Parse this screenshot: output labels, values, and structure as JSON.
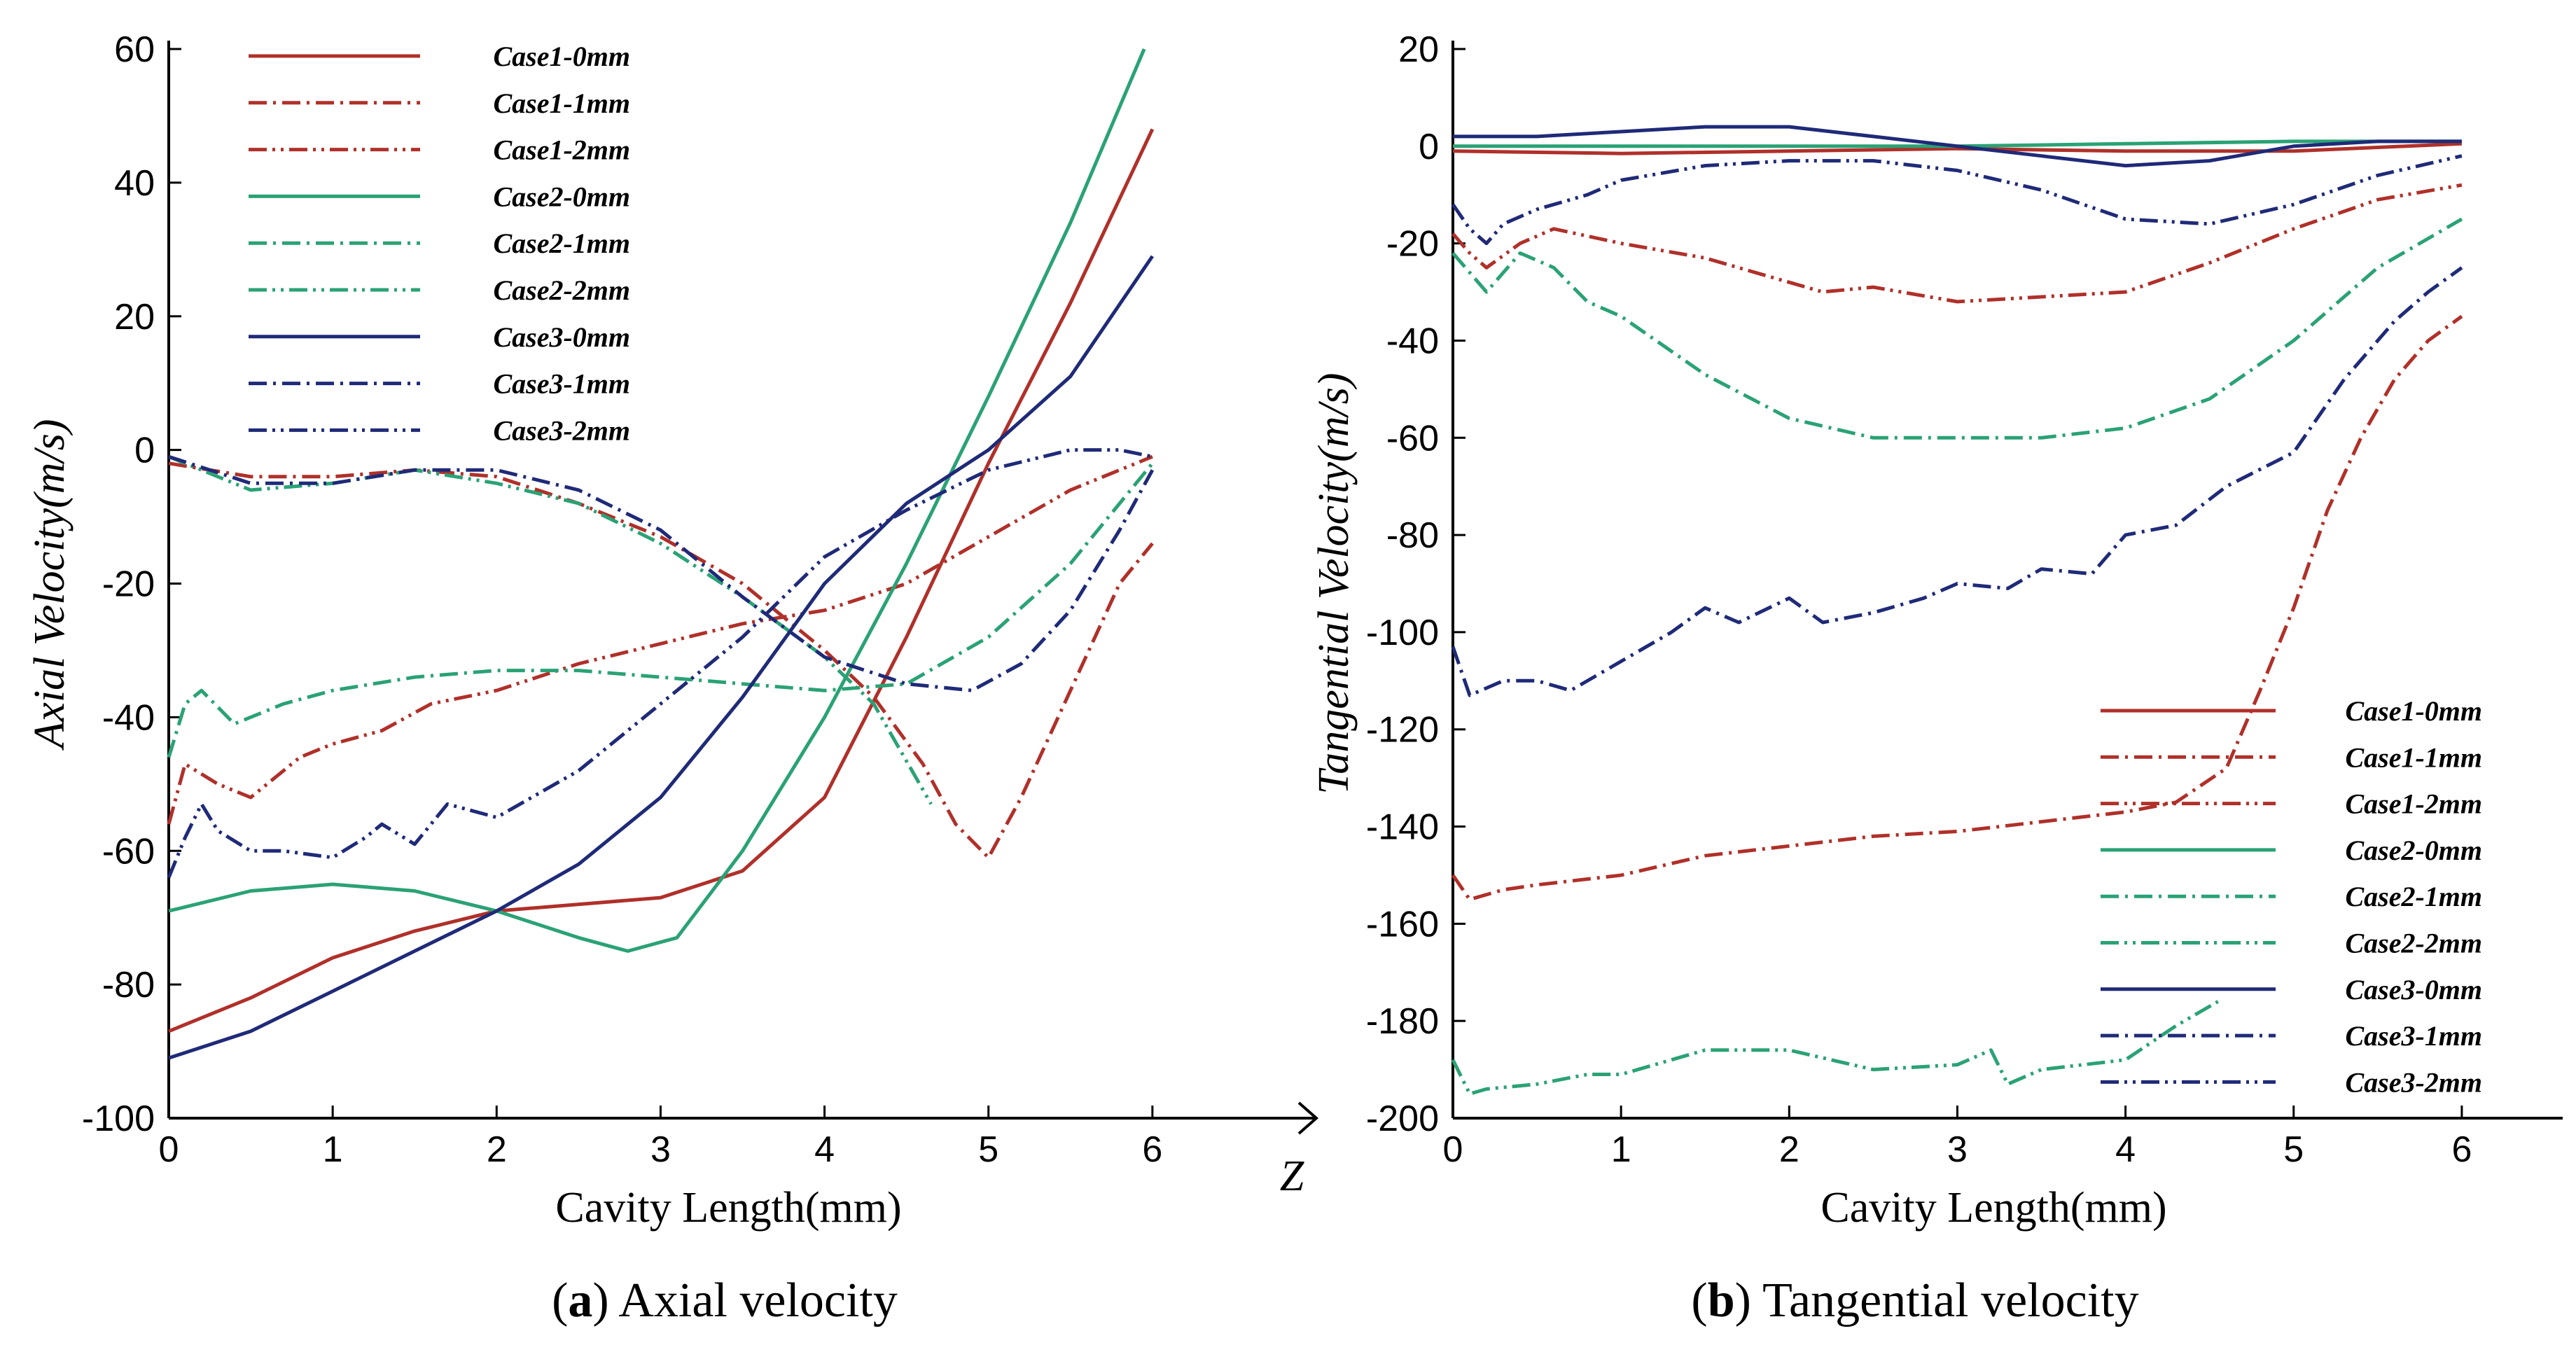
{
  "figure": {
    "caption_a": {
      "open": "(",
      "letter": "a",
      "rest": ") Axial velocity"
    },
    "caption_b": {
      "open": "(",
      "letter": "b",
      "rest": ") Tangential velocity"
    },
    "z_axis_label": "Z"
  },
  "styles": {
    "colors": {
      "case1": "#b0302a",
      "case2": "#2aa275",
      "case3": "#1f2a78"
    },
    "dash": {
      "0mm": "solid",
      "1mm": "dashdot",
      "2mm": "dashdotdot"
    }
  },
  "chart_data": [
    {
      "type": "line",
      "title": "",
      "xlabel": "Cavity Length(mm)",
      "ylabel": "Axial Velocity(m/s)",
      "xlim": [
        0,
        7.0
      ],
      "ylim": [
        -100,
        60
      ],
      "xticks": [
        0,
        1,
        2,
        3,
        4,
        5,
        6
      ],
      "yticks": [
        -100,
        -80,
        -60,
        -40,
        -20,
        0,
        20,
        40,
        60
      ],
      "legend_position": "top-left",
      "series": [
        {
          "name": "Case1-0mm",
          "case": "case1",
          "style": "0mm",
          "x": [
            0,
            0.5,
            1,
            1.5,
            2,
            2.5,
            3,
            3.5,
            4,
            4.5,
            5,
            5.5,
            6
          ],
          "y": [
            -87,
            -82,
            -76,
            -72,
            -69,
            -68,
            -67,
            -63,
            -52,
            -28,
            -2,
            22,
            48
          ]
        },
        {
          "name": "Case1-1mm",
          "case": "case1",
          "style": "1mm",
          "x": [
            0,
            0.5,
            1,
            1.5,
            2,
            2.5,
            3,
            3.5,
            3.8,
            4,
            4.3,
            4.6,
            4.8,
            5,
            5.2,
            5.5,
            5.8,
            6
          ],
          "y": [
            -2,
            -4,
            -4,
            -3,
            -4,
            -8,
            -13,
            -20,
            -26,
            -30,
            -37,
            -47,
            -56,
            -61,
            -52,
            -36,
            -20,
            -14
          ]
        },
        {
          "name": "Case1-2mm",
          "case": "case1",
          "style": "2mm",
          "x": [
            0,
            0.1,
            0.3,
            0.5,
            0.8,
            1,
            1.3,
            1.6,
            2,
            2.5,
            3,
            3.5,
            4,
            4.5,
            5,
            5.5,
            6
          ],
          "y": [
            -56,
            -47,
            -50,
            -52,
            -46,
            -44,
            -42,
            -38,
            -36,
            -32,
            -29,
            -26,
            -24,
            -20,
            -13,
            -6,
            -1
          ]
        },
        {
          "name": "Case2-0mm",
          "case": "case2",
          "style": "0mm",
          "x": [
            0,
            0.5,
            1,
            1.5,
            2,
            2.5,
            2.8,
            3.1,
            3.5,
            4,
            4.5,
            5,
            5.5,
            5.95
          ],
          "y": [
            -69,
            -66,
            -65,
            -66,
            -69,
            -73,
            -75,
            -73,
            -60,
            -40,
            -17,
            8,
            34,
            60
          ]
        },
        {
          "name": "Case2-1mm",
          "case": "case2",
          "style": "1mm",
          "x": [
            0,
            0.1,
            0.2,
            0.4,
            0.7,
            1,
            1.5,
            2,
            2.5,
            3,
            3.5,
            4,
            4.5,
            5,
            5.5,
            6
          ],
          "y": [
            -46,
            -38,
            -36,
            -41,
            -38,
            -36,
            -34,
            -33,
            -33,
            -34,
            -35,
            -36,
            -35,
            -28,
            -17,
            -2
          ]
        },
        {
          "name": "Case2-2mm",
          "case": "case2",
          "style": "2mm",
          "x": [
            0,
            0.5,
            1,
            1.5,
            2,
            2.5,
            3,
            3.5,
            4,
            4.3,
            4.65
          ],
          "y": [
            -1,
            -6,
            -5,
            -3,
            -5,
            -8,
            -14,
            -22,
            -31,
            -38,
            -53
          ]
        },
        {
          "name": "Case3-0mm",
          "case": "case3",
          "style": "0mm",
          "x": [
            0,
            0.5,
            1,
            1.5,
            2,
            2.5,
            3,
            3.5,
            4,
            4.5,
            5,
            5.5,
            6
          ],
          "y": [
            -91,
            -87,
            -81,
            -75,
            -69,
            -62,
            -52,
            -37,
            -20,
            -8,
            0,
            11,
            29
          ]
        },
        {
          "name": "Case3-1mm",
          "case": "case3",
          "style": "1mm",
          "x": [
            0,
            0.5,
            1,
            1.5,
            2,
            2.5,
            3,
            3.5,
            4,
            4.5,
            4.9,
            5.2,
            5.5,
            5.8,
            6
          ],
          "y": [
            -1,
            -5,
            -5,
            -3,
            -3,
            -6,
            -12,
            -22,
            -31,
            -35,
            -36,
            -32,
            -24,
            -12,
            -3
          ]
        },
        {
          "name": "Case3-2mm",
          "case": "case3",
          "style": "2mm",
          "x": [
            0,
            0.1,
            0.2,
            0.3,
            0.5,
            0.7,
            1,
            1.2,
            1.3,
            1.5,
            1.7,
            2,
            2.5,
            3,
            3.5,
            4,
            4.5,
            5,
            5.5,
            5.8,
            6
          ],
          "y": [
            -64,
            -58,
            -53,
            -57,
            -60,
            -60,
            -61,
            -58,
            -56,
            -59,
            -53,
            -55,
            -48,
            -38,
            -28,
            -16,
            -9,
            -3,
            0,
            0,
            -1
          ]
        }
      ]
    },
    {
      "type": "line",
      "title": "",
      "xlabel": "Cavity Length(mm)",
      "ylabel": "Tangential Velocity(m/s)",
      "xlim": [
        0,
        6.6
      ],
      "ylim": [
        -200,
        20
      ],
      "xticks": [
        0,
        1,
        2,
        3,
        4,
        5,
        6
      ],
      "yticks": [
        -200,
        -180,
        -160,
        -140,
        -120,
        -100,
        -80,
        -60,
        -40,
        -20,
        0,
        20
      ],
      "legend_position": "bottom-right",
      "series": [
        {
          "name": "Case1-0mm",
          "case": "case1",
          "style": "0mm",
          "x": [
            0,
            1,
            2,
            3,
            4,
            5,
            6
          ],
          "y": [
            -1,
            -1.5,
            -1,
            -0.5,
            -1,
            -1,
            0.5
          ]
        },
        {
          "name": "Case1-1mm",
          "case": "case1",
          "style": "1mm",
          "x": [
            0,
            0.1,
            0.3,
            0.5,
            1,
            1.5,
            2,
            2.5,
            3,
            3.5,
            4,
            4.3,
            4.6,
            4.8,
            5,
            5.2,
            5.4,
            5.6,
            5.8,
            6
          ],
          "y": [
            -150,
            -155,
            -153,
            -152,
            -150,
            -146,
            -144,
            -142,
            -141,
            -139,
            -137,
            -135,
            -128,
            -112,
            -95,
            -75,
            -60,
            -48,
            -40,
            -35
          ]
        },
        {
          "name": "Case1-2mm",
          "case": "case1",
          "style": "2mm",
          "x": [
            0,
            0.1,
            0.2,
            0.4,
            0.6,
            1,
            1.5,
            2,
            2.2,
            2.5,
            3,
            3.5,
            4,
            4.5,
            5,
            5.5,
            6
          ],
          "y": [
            -18,
            -22,
            -25,
            -20,
            -17,
            -20,
            -23,
            -28,
            -30,
            -29,
            -32,
            -31,
            -30,
            -24,
            -17,
            -11,
            -8
          ]
        },
        {
          "name": "Case2-0mm",
          "case": "case2",
          "style": "0mm",
          "x": [
            0,
            1,
            2,
            3,
            4,
            5,
            6
          ],
          "y": [
            0,
            0,
            0,
            0,
            0.5,
            1,
            1
          ]
        },
        {
          "name": "Case2-1mm",
          "case": "case2",
          "style": "1mm",
          "x": [
            0,
            0.2,
            0.4,
            0.6,
            0.8,
            1,
            1.5,
            2,
            2.5,
            3,
            3.5,
            4,
            4.5,
            5,
            5.5,
            6
          ],
          "y": [
            -22,
            -30,
            -22,
            -25,
            -32,
            -35,
            -47,
            -56,
            -60,
            -60,
            -60,
            -58,
            -52,
            -40,
            -25,
            -15
          ]
        },
        {
          "name": "Case2-2mm",
          "case": "case2",
          "style": "2mm",
          "x": [
            0,
            0.1,
            0.2,
            0.5,
            0.8,
            1,
            1.5,
            2,
            2.5,
            3,
            3.2,
            3.3,
            3.5,
            4,
            4.3,
            4.55
          ],
          "y": [
            -188,
            -195,
            -194,
            -193,
            -191,
            -191,
            -186,
            -186,
            -190,
            -189,
            -186,
            -193,
            -190,
            -188,
            -181,
            -176
          ]
        },
        {
          "name": "Case3-0mm",
          "case": "case3",
          "style": "0mm",
          "x": [
            0,
            0.5,
            1,
            1.5,
            2,
            2.5,
            3,
            3.5,
            4,
            4.5,
            5,
            5.5,
            6
          ],
          "y": [
            2,
            2,
            3,
            4,
            4,
            2,
            0,
            -2,
            -4,
            -3,
            0,
            1,
            1
          ]
        },
        {
          "name": "Case3-1mm",
          "case": "case3",
          "style": "1mm",
          "x": [
            0,
            0.1,
            0.3,
            0.5,
            0.7,
            1,
            1.3,
            1.5,
            1.7,
            2,
            2.2,
            2.5,
            2.8,
            3,
            3.3,
            3.5,
            3.8,
            4,
            4.3,
            4.6,
            5,
            5.3,
            5.6,
            5.8,
            6
          ],
          "y": [
            -103,
            -113,
            -110,
            -110,
            -112,
            -106,
            -100,
            -95,
            -98,
            -93,
            -98,
            -96,
            -93,
            -90,
            -91,
            -87,
            -88,
            -80,
            -78,
            -70,
            -63,
            -48,
            -36,
            -30,
            -25
          ]
        },
        {
          "name": "Case3-2mm",
          "case": "case3",
          "style": "2mm",
          "x": [
            0,
            0.1,
            0.2,
            0.3,
            0.5,
            0.8,
            1,
            1.5,
            2,
            2.5,
            3,
            3.5,
            4,
            4.5,
            5,
            5.5,
            6
          ],
          "y": [
            -12,
            -17,
            -20,
            -16,
            -13,
            -10,
            -7,
            -4,
            -3,
            -3,
            -5,
            -9,
            -15,
            -16,
            -12,
            -6,
            -2
          ]
        }
      ]
    }
  ]
}
